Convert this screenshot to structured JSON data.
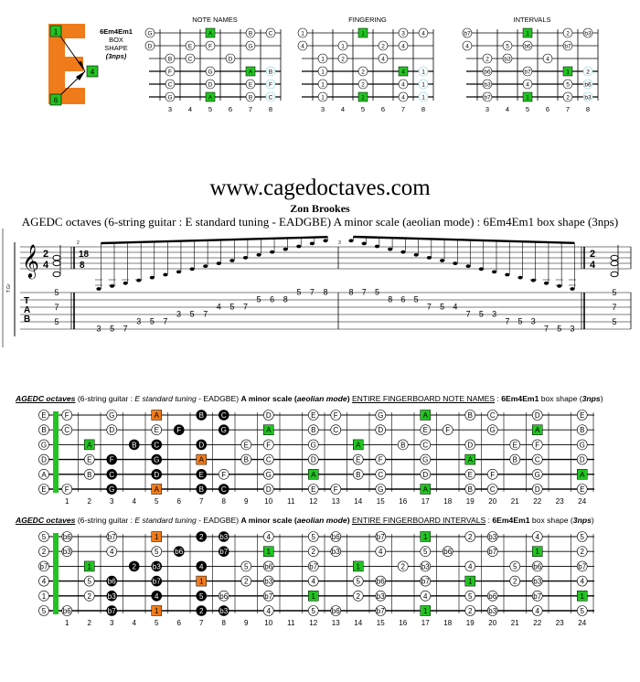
{
  "colors": {
    "orange": "#f07b1b",
    "green": "#21c421",
    "black": "#000000",
    "root_outline": "#7fd0d0"
  },
  "shape_box": {
    "name": "6Em4Em1",
    "line2": "BOX",
    "line3": "SHAPE",
    "line4": "(3nps)"
  },
  "mini_diagrams": [
    {
      "title": "NOTE NAMES",
      "rows": [
        [
          "G",
          "",
          "",
          "A",
          "",
          "B",
          "C"
        ],
        [
          "D",
          "",
          "E",
          "F",
          "",
          "G",
          ""
        ],
        [
          "",
          "B",
          "C",
          "",
          "D",
          "",
          ""
        ],
        [
          "",
          "F",
          "",
          "G",
          "",
          "A",
          "B"
        ],
        [
          "",
          "C",
          "",
          "D",
          "",
          "E",
          "F"
        ],
        [
          "",
          "G",
          "",
          "A",
          "",
          "B",
          "C"
        ]
      ]
    },
    {
      "title": "FINGERING",
      "rows": [
        [
          "1",
          "",
          "",
          "1",
          "",
          "3",
          "4"
        ],
        [
          "4",
          "",
          "1",
          "",
          "2",
          "4",
          ""
        ],
        [
          "",
          "1",
          "2",
          "",
          "4",
          "",
          ""
        ],
        [
          "",
          "1",
          "",
          "2",
          "",
          "4",
          "1"
        ],
        [
          "",
          "1",
          "",
          "2",
          "",
          "4",
          "1"
        ],
        [
          "",
          "1",
          "",
          "2",
          "",
          "4",
          "1"
        ]
      ]
    },
    {
      "title": "INTERVALS",
      "rows": [
        [
          "b7",
          "",
          "",
          "1",
          "",
          "2",
          "b3"
        ],
        [
          "4",
          "",
          "5",
          "b6",
          "",
          "b7",
          ""
        ],
        [
          "",
          "2",
          "b3",
          "",
          "4",
          "",
          ""
        ],
        [
          "",
          "b6",
          "",
          "b7",
          "",
          "1",
          "2"
        ],
        [
          "",
          "b3",
          "",
          "4",
          "",
          "5",
          "b6"
        ],
        [
          "",
          "b7",
          "",
          "1",
          "",
          "2",
          "b3"
        ]
      ]
    }
  ],
  "mini_frets": [
    "3",
    "4",
    "5",
    "6",
    "7",
    "8"
  ],
  "header": {
    "site": "www.cagedoctaves.com",
    "author": "Zon Brookes",
    "subtitle": "AGEDC octaves (6-string guitar : E standard tuning - EADGBE) A minor scale (aeolian mode) : 6Em4Em1 box shape (3nps)"
  },
  "notation": {
    "time1": [
      "2",
      "4"
    ],
    "time2": [
      "18",
      "8"
    ],
    "time3": [
      "2",
      "4"
    ],
    "tab_letters": [
      "T",
      "A",
      "B"
    ],
    "staff_label": "T.Gr",
    "measure_numbers": [
      "2",
      "3"
    ],
    "chord1": [
      "5",
      "7",
      "5"
    ],
    "chord2": [
      "5",
      "7",
      "5"
    ],
    "tab_run1": [
      "3",
      "5",
      "7",
      "3",
      "5",
      "7",
      "3",
      "5",
      "7",
      "4",
      "5",
      "7",
      "5",
      "6",
      "8",
      "5",
      "7",
      "8"
    ],
    "tab_run2": [
      "8",
      "7",
      "5",
      "8",
      "6",
      "5",
      "7",
      "5",
      "4",
      "7",
      "5",
      "3",
      "7",
      "5",
      "3",
      "7",
      "5",
      "3"
    ]
  },
  "board1": {
    "caption_parts": {
      "a": "AGEDC octaves",
      "b": " (6-string guitar : ",
      "c": "E standard tuning",
      "d": " - EADGBE) ",
      "e": "A minor scale",
      "f": " (",
      "g": "aeolian mode",
      "h": ") ",
      "i": "ENTIRE FINGERBOARD NOTE NAMES",
      "j": " : ",
      "k": "6Em4Em1",
      "l": " box shape (",
      "m": "3nps",
      "n": ")"
    },
    "open": [
      "E",
      "B",
      "G",
      "D",
      "A",
      "E"
    ]
  },
  "board2": {
    "caption_parts": {
      "a": "AGEDC octaves",
      "b": " (6-string guitar : ",
      "c": "E standard tuning",
      "d": " - EADGBE) ",
      "e": "A minor scale",
      "f": " (",
      "g": "aeolian mode",
      "h": ") ",
      "i": "ENTIRE FINGERBOARD INTERVALS",
      "j": " : ",
      "k": "6Em4Em1",
      "l": " box shape (",
      "m": "3nps",
      "n": ")"
    },
    "open": [
      "5",
      "2",
      "b7",
      "4",
      "1",
      "5"
    ]
  },
  "fret_numbers": [
    "1",
    "2",
    "3",
    "4",
    "5",
    "6",
    "7",
    "8",
    "9",
    "10",
    "11",
    "12",
    "13",
    "14",
    "15",
    "16",
    "17",
    "18",
    "19",
    "20",
    "21",
    "22",
    "23",
    "24"
  ]
}
